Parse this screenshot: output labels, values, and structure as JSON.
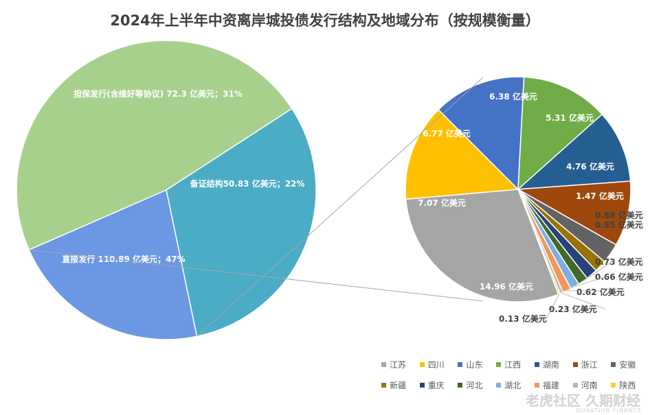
{
  "title": "2024年上半年中资离岸城投债发行结构及地域分布（按规模衡量）",
  "colors": {
    "pie_main": [
      "#4BACC6",
      "#6B97E3",
      "#A8D08D"
    ],
    "region": [
      "#A5A5A5",
      "#FFC000",
      "#4472C4",
      "#70AD47",
      "#255E91",
      "#9E480E",
      "#636363",
      "#997300",
      "#264478",
      "#43682B",
      "#7CAFDD",
      "#F1975A",
      "#B7B7B7",
      "#FFCD33"
    ]
  },
  "chart_data": [
    {
      "type": "pie",
      "title": "2024年上半年中资离岸城投债发行结构及地域分布（按规模衡量）",
      "slices": [
        {
          "name": "担保发行(含维好等协议)",
          "value": 72.3,
          "percent": 31,
          "label": "担保发行(含维好等协议) 72.3 亿美元；31%"
        },
        {
          "name": "备证结构",
          "value": 50.83,
          "percent": 22,
          "label": "备证结构50.83 亿美元；22%"
        },
        {
          "name": "直接发行",
          "value": 110.89,
          "percent": 47,
          "label": "直接发行 110.89 亿美元；47%"
        }
      ]
    },
    {
      "type": "pie",
      "subtitle": "",
      "slices": [
        {
          "name": "江苏",
          "value": 14.96,
          "label": "14.96 亿美元"
        },
        {
          "name": "四川",
          "value": 7.07,
          "label": "7.07 亿美元"
        },
        {
          "name": "山东",
          "value": 6.77,
          "label": "6.77 亿美元"
        },
        {
          "name": "江西",
          "value": 6.38,
          "label": "6.38 亿美元"
        },
        {
          "name": "湖南",
          "value": 5.31,
          "label": "5.31 亿美元"
        },
        {
          "name": "浙江",
          "value": 4.76,
          "label": "4.76 亿美元"
        },
        {
          "name": "安徽",
          "value": 1.47,
          "label": "1.47 亿美元"
        },
        {
          "name": "新疆",
          "value": 0.88,
          "label": "0.88 亿美元"
        },
        {
          "name": "重庆",
          "value": 0.85,
          "label": "0.85 亿美元"
        },
        {
          "name": "河北",
          "value": 0.73,
          "label": "0.73 亿美元"
        },
        {
          "name": "湖北",
          "value": 0.66,
          "label": "0.66 亿美元"
        },
        {
          "name": "福建",
          "value": 0.62,
          "label": "0.62 亿美元"
        },
        {
          "name": "河南",
          "value": 0.23,
          "label": "0.23 亿美元"
        },
        {
          "name": "陕西",
          "value": 0.13,
          "label": "0.13 亿美元"
        }
      ],
      "legend_position": "bottom-right"
    }
  ],
  "legend": {
    "row1": [
      "江苏",
      "四川",
      "山东",
      "江西",
      "湖南",
      "浙江",
      "安徽"
    ],
    "row2": [
      "新疆",
      "重庆",
      "河北",
      "湖北",
      "福建",
      "河南",
      "陕西"
    ]
  },
  "watermark": {
    "text": "老虎社区 久期财经",
    "sub": "DURATION FINANCE"
  }
}
